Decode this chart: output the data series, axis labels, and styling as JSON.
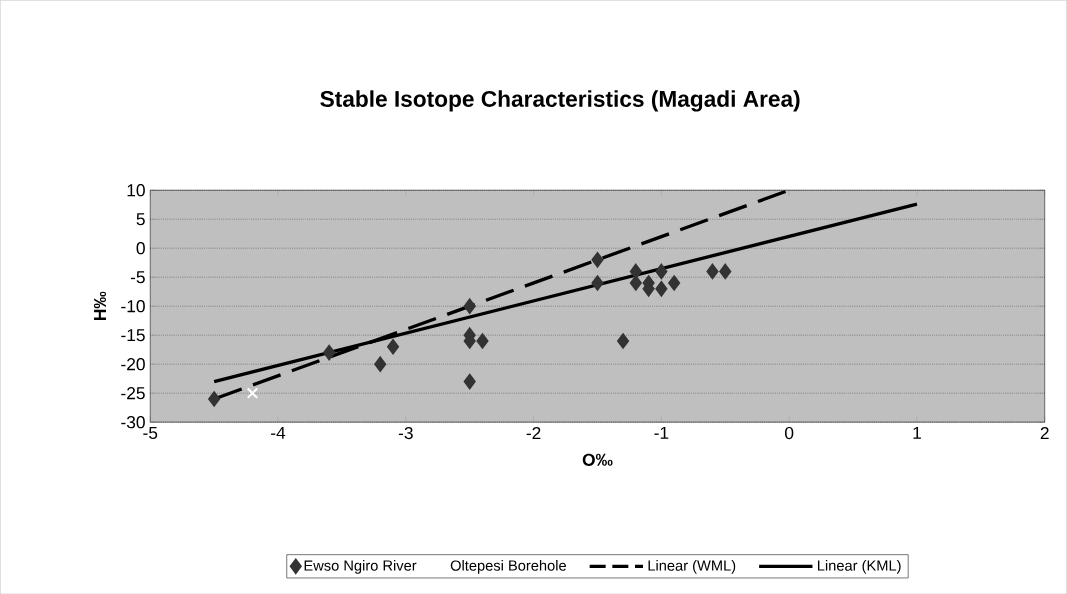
{
  "chart_data": {
    "type": "scatter",
    "title": "Stable Isotope Characteristics (Magadi Area)",
    "xlabel": "O‰",
    "ylabel": "H‰",
    "xlim": [
      -5,
      2
    ],
    "xticks": [
      -5,
      -4,
      -3,
      -2,
      -1,
      0,
      1,
      2
    ],
    "ylim": [
      -30,
      10
    ],
    "yticks": [
      -30,
      -25,
      -20,
      -15,
      -10,
      -5,
      0,
      5,
      10
    ],
    "grid": "y",
    "legend": "bottom",
    "series": [
      {
        "name": "Ewso Ngiro River",
        "marker": "diamond",
        "color": "#333333",
        "x": [
          -4.5,
          -3.6,
          -3.2,
          -3.1,
          -2.5,
          -2.5,
          -2.5,
          -2.4,
          -2.5,
          -1.5,
          -1.5,
          -1.3,
          -1.2,
          -1.2,
          -1.1,
          -1.1,
          -1.0,
          -1.0,
          -0.9,
          -0.6,
          -0.5
        ],
        "values": [
          -26,
          -18,
          -20,
          -17,
          -10,
          -15,
          -16,
          -16,
          -23,
          -2,
          -6,
          -16,
          -4,
          -6,
          -6,
          -7,
          -7,
          -4,
          -6,
          -4,
          -4
        ]
      },
      {
        "name": "Oltepesi Borehole",
        "marker": "cross",
        "color": "#ffffff",
        "x": [
          -4.2
        ],
        "values": [
          -25
        ]
      },
      {
        "name": "Linear (WML)",
        "type": "line",
        "line_style": "dashed",
        "color": "#000000",
        "x": [
          -4.5,
          0
        ],
        "values": [
          -26,
          10
        ]
      },
      {
        "name": "Linear (KML)",
        "type": "line",
        "line_style": "solid",
        "color": "#000000",
        "x": [
          -4.5,
          1
        ],
        "values": [
          -23,
          7.6
        ]
      }
    ]
  }
}
